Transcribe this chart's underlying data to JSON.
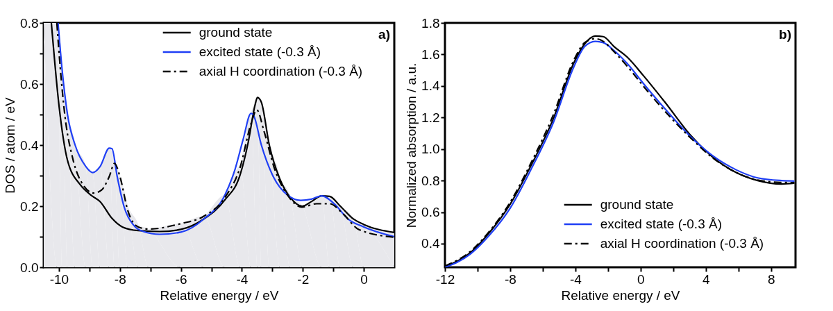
{
  "chart_data": [
    {
      "type": "line",
      "xlabel": "Relative energy / eV",
      "ylabel": "DOS / atom / eV",
      "annotations": [
        "a)"
      ],
      "legend": "top",
      "grid": false,
      "xlim": [
        -10.5,
        1
      ],
      "ylim": [
        0,
        0.8
      ],
      "xticks": [
        -10,
        {
          "value": -9,
          "label": null
        },
        -8,
        {
          "value": -7,
          "label": null
        },
        -6,
        {
          "value": -5,
          "label": null
        },
        -4,
        {
          "value": -3,
          "label": null
        },
        -2,
        {
          "value": -1,
          "label": null
        },
        0
      ],
      "yticks": [
        {
          "value": 0,
          "label": "0.0"
        },
        {
          "value": 0.1,
          "label": null
        },
        0.2,
        {
          "value": 0.3,
          "label": null
        },
        0.4,
        {
          "value": 0.5,
          "label": null
        },
        0.6,
        {
          "value": 0.7,
          "label": null
        },
        0.8
      ],
      "series": [
        {
          "type": "area",
          "color": "#e8e8ec",
          "x": [
            -10.5,
            -10.05,
            -9.9,
            -9.72,
            -9.47,
            -9.12,
            -8.9,
            -8.65,
            -8.35,
            -8.18,
            -8.0,
            -7.74,
            -7.4,
            -7.06,
            -6.0,
            -5.25,
            -4.56,
            -4.05,
            -3.7,
            -3.49,
            -3.36,
            -3.1,
            -2.75,
            -2.41,
            -2.02,
            -1.38,
            -1.12,
            -0.77,
            -0.34,
            0,
            1.0
          ],
          "values": [
            0.8,
            0.8,
            0.65,
            0.5,
            0.4,
            0.33,
            0.31,
            0.33,
            0.39,
            0.34,
            0.297,
            0.2,
            0.14,
            0.125,
            0.143,
            0.167,
            0.236,
            0.33,
            0.504,
            0.556,
            0.54,
            0.4,
            0.29,
            0.23,
            0.2,
            0.234,
            0.232,
            0.2,
            0.158,
            0.14,
            0.114
          ]
        },
        {
          "name": "ground state",
          "color": "#000000",
          "line_style": "solid",
          "x": [
            -10.25,
            -10.0,
            -9.72,
            -9.3,
            -8.95,
            -8.65,
            -8.26,
            -7.92,
            -7.4,
            -6.7,
            -6.0,
            -5.25,
            -4.56,
            -4.05,
            -3.79,
            -3.57,
            -3.49,
            -3.36,
            -3.1,
            -2.75,
            -2.41,
            -2.02,
            -1.72,
            -1.38,
            -1.12,
            -0.77,
            -0.34,
            0,
            1.0
          ],
          "values": [
            0.8,
            0.53,
            0.35,
            0.27,
            0.236,
            0.215,
            0.16,
            0.132,
            0.12,
            0.117,
            0.124,
            0.158,
            0.22,
            0.305,
            0.41,
            0.53,
            0.556,
            0.54,
            0.4,
            0.288,
            0.228,
            0.2,
            0.215,
            0.234,
            0.232,
            0.2,
            0.158,
            0.14,
            0.114
          ]
        },
        {
          "name": "excited state (-0.3 Å)",
          "color": "#1f3ff5",
          "line_style": "solid",
          "x": [
            -10.03,
            -9.9,
            -9.72,
            -9.47,
            -9.12,
            -8.9,
            -8.65,
            -8.35,
            -8.26,
            -8.09,
            -7.87,
            -7.57,
            -7.23,
            -6.7,
            -6.0,
            -5.25,
            -4.56,
            -4.22,
            -3.96,
            -3.7,
            -3.61,
            -3.36,
            -3.01,
            -2.5,
            -2.07,
            -1.72,
            -1.38,
            -0.95,
            -0.52,
            0,
            1.0
          ],
          "values": [
            0.8,
            0.65,
            0.5,
            0.4,
            0.33,
            0.31,
            0.33,
            0.39,
            0.388,
            0.297,
            0.2,
            0.14,
            0.117,
            0.108,
            0.115,
            0.158,
            0.236,
            0.322,
            0.418,
            0.504,
            0.496,
            0.4,
            0.305,
            0.236,
            0.219,
            0.223,
            0.234,
            0.206,
            0.158,
            0.132,
            0.1
          ]
        },
        {
          "name": "axial H coordination (-0.3 Å)",
          "color": "#000000",
          "line_style": "dashed",
          "x": [
            -10.07,
            -9.98,
            -9.81,
            -9.55,
            -9.21,
            -8.86,
            -8.6,
            -8.35,
            -8.18,
            -8.0,
            -7.74,
            -7.4,
            -7.06,
            -6.0,
            -5.25,
            -4.56,
            -4.05,
            -3.7,
            -3.51,
            -3.27,
            -2.93,
            -2.5,
            -2.03,
            -1.55,
            -1.12,
            -0.69,
            -0.17,
            1.0
          ],
          "values": [
            0.8,
            0.68,
            0.5,
            0.357,
            0.27,
            0.243,
            0.253,
            0.297,
            0.34,
            0.297,
            0.185,
            0.132,
            0.125,
            0.143,
            0.167,
            0.228,
            0.33,
            0.47,
            0.515,
            0.444,
            0.323,
            0.236,
            0.197,
            0.208,
            0.208,
            0.176,
            0.124,
            0.098
          ]
        }
      ]
    },
    {
      "type": "line",
      "xlabel": "Relative energy / eV",
      "ylabel": "Normalized absorption / a.u.",
      "annotations": [
        "b)"
      ],
      "legend": "bottom",
      "grid": false,
      "xlim": [
        -12,
        9.5
      ],
      "ylim": [
        0.25,
        1.8
      ],
      "xticks": [
        -12,
        {
          "value": -10,
          "label": null
        },
        -8,
        {
          "value": -6,
          "label": null
        },
        -4,
        {
          "value": -2,
          "label": null
        },
        0,
        {
          "value": 2,
          "label": null
        },
        4,
        {
          "value": 6,
          "label": null
        },
        8
      ],
      "yticks": [
        0.4,
        0.6,
        0.8,
        {
          "value": 1,
          "label": "1.0"
        },
        1.2,
        1.4,
        1.6,
        1.8
      ],
      "series": [
        {
          "name": "ground state",
          "color": "#000000",
          "line_style": "solid",
          "x": [
            -12,
            -10.45,
            -9.3,
            -8,
            -6.7,
            -5.39,
            -4.08,
            -3.43,
            -2.78,
            -2.29,
            -1.63,
            -0.82,
            0.16,
            1.47,
            3.1,
            4.41,
            5.88,
            7.18,
            8.65,
            9.43
          ],
          "values": [
            0.255,
            0.342,
            0.467,
            0.65,
            0.9,
            1.183,
            1.55,
            1.667,
            1.717,
            1.713,
            1.65,
            1.583,
            1.467,
            1.3,
            1.083,
            0.95,
            0.85,
            0.8,
            0.778,
            0.783
          ]
        },
        {
          "name": "excited state (-0.3 Å)",
          "color": "#1f3ff5",
          "line_style": "solid",
          "x": [
            -12,
            -10.45,
            -9.3,
            -8,
            -6.7,
            -5.39,
            -4.08,
            -3.43,
            -2.78,
            -2.29,
            -1.63,
            -0.82,
            0.16,
            1.47,
            3.1,
            4.41,
            5.88,
            7.18,
            8.65,
            9.43
          ],
          "values": [
            0.25,
            0.333,
            0.45,
            0.625,
            0.875,
            1.158,
            1.525,
            1.65,
            1.683,
            1.675,
            1.625,
            1.542,
            1.417,
            1.258,
            1.075,
            0.958,
            0.867,
            0.817,
            0.8,
            0.797
          ]
        },
        {
          "name": "axial H coordination (-0.3 Å)",
          "color": "#000000",
          "line_style": "dashed",
          "x": [
            -12,
            -10.45,
            -9.3,
            -8,
            -6.7,
            -5.39,
            -4.08,
            -3.43,
            -2.78,
            -2.29,
            -1.63,
            -0.82,
            0.16,
            1.47,
            3.1,
            4.41,
            5.88,
            7.18,
            8.65,
            9.43
          ],
          "values": [
            0.258,
            0.35,
            0.475,
            0.663,
            0.917,
            1.208,
            1.567,
            1.675,
            1.7,
            1.683,
            1.617,
            1.525,
            1.4,
            1.242,
            1.067,
            0.945,
            0.85,
            0.803,
            0.788,
            0.787
          ]
        }
      ]
    }
  ]
}
